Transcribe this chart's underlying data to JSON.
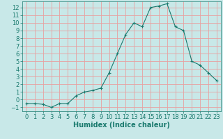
{
  "x": [
    0,
    1,
    2,
    3,
    4,
    5,
    6,
    7,
    8,
    9,
    10,
    11,
    12,
    13,
    14,
    15,
    16,
    17,
    18,
    19,
    20,
    21,
    22,
    23
  ],
  "y": [
    -0.5,
    -0.5,
    -0.6,
    -1.0,
    -0.5,
    -0.5,
    0.5,
    1.0,
    1.2,
    1.5,
    3.5,
    6.0,
    8.5,
    10.0,
    9.5,
    12.0,
    12.2,
    12.5,
    9.5,
    9.0,
    5.0,
    4.5,
    3.5,
    2.5
  ],
  "line_color": "#1a7a6e",
  "marker": "+",
  "marker_size": 3,
  "marker_lw": 0.8,
  "line_width": 0.8,
  "bg_color": "#c8e8e8",
  "grid_color": "#e8a0a0",
  "xlabel": "Humidex (Indice chaleur)",
  "xlim": [
    -0.5,
    23.5
  ],
  "ylim": [
    -1.5,
    12.8
  ],
  "xticks": [
    0,
    1,
    2,
    3,
    4,
    5,
    6,
    7,
    8,
    9,
    10,
    11,
    12,
    13,
    14,
    15,
    16,
    17,
    18,
    19,
    20,
    21,
    22,
    23
  ],
  "yticks": [
    -1,
    0,
    1,
    2,
    3,
    4,
    5,
    6,
    7,
    8,
    9,
    10,
    11,
    12
  ],
  "font_color": "#1a7a6e",
  "tick_fontsize": 6,
  "xlabel_fontsize": 7
}
